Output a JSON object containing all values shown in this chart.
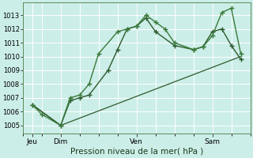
{
  "xlabel": "Pression niveau de la mer( hPa )",
  "bg_color": "#cceee8",
  "grid_color": "#ffffff",
  "line_color1": "#2d5a2d",
  "line_color2": "#3a7a3a",
  "ylim": [
    1004.4,
    1013.9
  ],
  "xlim": [
    0,
    12
  ],
  "yticks": [
    1005,
    1006,
    1007,
    1008,
    1009,
    1010,
    1011,
    1012,
    1013
  ],
  "xtick_pos": [
    0.5,
    2.0,
    6.0,
    10.0
  ],
  "xtick_labels": [
    "Jeu",
    "Dim",
    "Ven",
    "Sam"
  ],
  "vline_x": [
    1.0,
    2.0,
    6.0,
    10.0
  ],
  "series1_x": [
    0.5,
    1.0,
    2.0,
    2.5,
    3.0,
    3.5,
    4.0,
    5.0,
    5.5,
    6.0,
    6.5,
    7.0,
    7.5,
    8.0,
    9.0,
    9.5,
    10.0,
    10.5,
    11.0,
    11.5
  ],
  "series1_y": [
    1006.5,
    1005.8,
    1005.0,
    1007.0,
    1007.2,
    1008.0,
    1010.2,
    1011.8,
    1012.0,
    1012.2,
    1013.0,
    1012.5,
    1012.0,
    1011.0,
    1010.5,
    1010.7,
    1011.5,
    1013.2,
    1013.5,
    1010.2
  ],
  "series2_x": [
    0.5,
    2.0,
    2.5,
    3.0,
    3.5,
    4.5,
    5.0,
    5.5,
    6.0,
    6.5,
    7.0,
    8.0,
    9.0,
    9.5,
    10.0,
    10.5,
    11.0,
    11.5
  ],
  "series2_y": [
    1006.5,
    1005.0,
    1006.8,
    1007.0,
    1007.2,
    1009.0,
    1010.5,
    1012.0,
    1012.2,
    1012.8,
    1011.8,
    1010.8,
    1010.5,
    1010.7,
    1011.8,
    1012.0,
    1010.8,
    1009.8
  ],
  "series3_x": [
    0.5,
    2.0,
    11.5
  ],
  "series3_y": [
    1006.5,
    1005.0,
    1010.0
  ],
  "marker": "+",
  "ms": 4,
  "lw": 1.0
}
